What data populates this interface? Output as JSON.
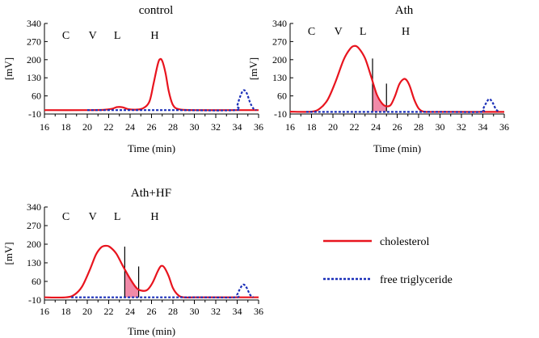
{
  "chart_data": [
    {
      "type": "line",
      "title": "control",
      "xlabel": "Time (min)",
      "ylabel": "[mV]",
      "xlim": [
        16,
        36
      ],
      "ylim": [
        -10,
        340
      ],
      "xticks": [
        16,
        18,
        20,
        22,
        24,
        26,
        28,
        30,
        32,
        34,
        36
      ],
      "yticks": [
        -10,
        60,
        130,
        200,
        270,
        340
      ],
      "grid": false,
      "fraction_labels": [
        {
          "text": "C",
          "x": 18.0
        },
        {
          "text": "V",
          "x": 20.5
        },
        {
          "text": "L",
          "x": 22.8
        },
        {
          "text": "H",
          "x": 26.3
        }
      ],
      "series": [
        {
          "name": "cholesterol",
          "color": "#e8141e",
          "style": "solid",
          "x": [
            16,
            20,
            21.5,
            22.3,
            22.8,
            23.3,
            23.8,
            24.5,
            25.2,
            25.8,
            26.2,
            26.6,
            26.8,
            27.0,
            27.3,
            27.6,
            28.0,
            28.6,
            30,
            33,
            36
          ],
          "y": [
            5,
            5,
            6,
            10,
            17,
            16,
            9,
            7,
            12,
            38,
            110,
            185,
            202,
            195,
            150,
            80,
            25,
            8,
            5,
            5,
            5
          ]
        },
        {
          "name": "free triglyceride",
          "color": "#1a2fb8",
          "style": "dashed",
          "x": [
            20,
            26,
            28.5,
            33.8,
            34.0,
            34.3,
            34.6,
            34.9,
            35.2,
            35.5,
            35.8
          ],
          "y": [
            5,
            5,
            5,
            5,
            22,
            60,
            82,
            70,
            35,
            12,
            5
          ]
        }
      ],
      "shaded_region": null
    },
    {
      "type": "line",
      "title": "Ath",
      "xlabel": "Time (min)",
      "ylabel": "[mV]",
      "xlim": [
        16,
        36
      ],
      "ylim": [
        -10,
        340
      ],
      "xticks": [
        16,
        18,
        20,
        22,
        24,
        26,
        28,
        30,
        32,
        34,
        36
      ],
      "yticks": [
        -10,
        60,
        130,
        200,
        270,
        340
      ],
      "grid": false,
      "fraction_labels": [
        {
          "text": "C",
          "x": 18.0
        },
        {
          "text": "V",
          "x": 20.5
        },
        {
          "text": "L",
          "x": 22.8
        },
        {
          "text": "H",
          "x": 26.8
        }
      ],
      "series": [
        {
          "name": "cholesterol",
          "color": "#e8141e",
          "style": "solid",
          "x": [
            16,
            18,
            18.8,
            19.5,
            20.2,
            21,
            21.6,
            22.0,
            22.4,
            23.0,
            23.6,
            24.1,
            24.6,
            25.0,
            25.4,
            25.8,
            26.2,
            26.6,
            26.9,
            27.2,
            27.6,
            28.0,
            28.4,
            29,
            30,
            33,
            36
          ],
          "y": [
            -1,
            -1,
            12,
            45,
            110,
            200,
            242,
            253,
            245,
            205,
            130,
            65,
            30,
            20,
            25,
            60,
            105,
            125,
            120,
            95,
            45,
            12,
            0,
            -2,
            -2,
            -2,
            -2
          ]
        },
        {
          "name": "free triglyceride",
          "color": "#1a2fb8",
          "style": "dashed",
          "x": [
            17.5,
            30,
            33.8,
            34.0,
            34.3,
            34.6,
            34.9,
            35.2,
            35.5
          ],
          "y": [
            -2,
            -2,
            -2,
            8,
            32,
            48,
            35,
            10,
            -2
          ]
        }
      ],
      "shaded_region": {
        "x": [
          23.7,
          25.0
        ],
        "color": "#f08aa8"
      }
    },
    {
      "type": "line",
      "title": "Ath+HF",
      "xlabel": "Time (min)",
      "ylabel": "[mV]",
      "xlim": [
        16,
        36
      ],
      "ylim": [
        -10,
        340
      ],
      "xticks": [
        16,
        18,
        20,
        22,
        24,
        26,
        28,
        30,
        32,
        34,
        36
      ],
      "yticks": [
        -10,
        60,
        130,
        200,
        270,
        340
      ],
      "grid": false,
      "fraction_labels": [
        {
          "text": "C",
          "x": 18.0
        },
        {
          "text": "V",
          "x": 20.5
        },
        {
          "text": "L",
          "x": 22.8
        },
        {
          "text": "H",
          "x": 26.3
        }
      ],
      "series": [
        {
          "name": "cholesterol",
          "color": "#e8141e",
          "style": "solid",
          "x": [
            16,
            18,
            18.8,
            19.5,
            20.2,
            20.8,
            21.3,
            21.7,
            22.1,
            22.7,
            23.3,
            24.0,
            24.6,
            25.1,
            25.6,
            26.1,
            26.6,
            26.9,
            27.2,
            27.6,
            28.0,
            28.5,
            29,
            30,
            33,
            36
          ],
          "y": [
            0,
            0,
            10,
            40,
            100,
            160,
            188,
            194,
            190,
            165,
            120,
            70,
            35,
            25,
            28,
            55,
            100,
            118,
            112,
            80,
            35,
            8,
            0,
            0,
            0,
            0
          ]
        },
        {
          "name": "free triglyceride",
          "color": "#1a2fb8",
          "style": "dashed",
          "x": [
            18.5,
            30,
            33.8,
            34.0,
            34.3,
            34.6,
            34.9,
            35.2,
            35.5
          ],
          "y": [
            0,
            0,
            0,
            10,
            35,
            48,
            35,
            10,
            0
          ]
        }
      ],
      "shaded_region": {
        "x": [
          23.5,
          24.8
        ],
        "color": "#f08aa8"
      }
    }
  ],
  "legend": {
    "placement": "bottom-right",
    "entries": [
      {
        "label": "cholesterol",
        "color": "#e8141e",
        "style": "solid"
      },
      {
        "label": "free triglyceride",
        "color": "#1a2fb8",
        "style": "dashed"
      }
    ]
  }
}
